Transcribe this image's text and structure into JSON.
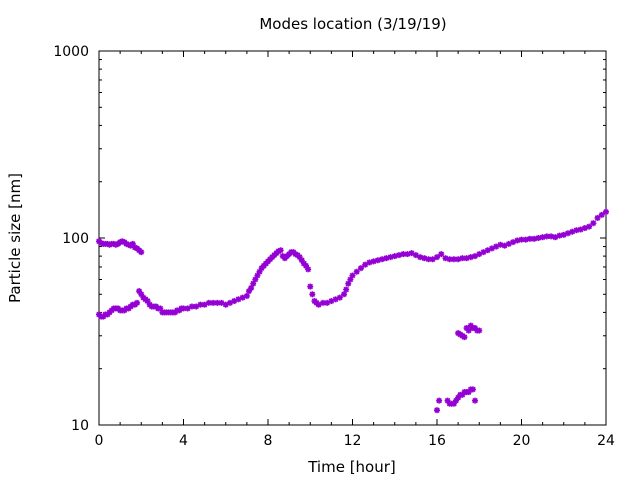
{
  "chart_data": {
    "type": "scatter",
    "title": "Modes location (3/19/19)",
    "xlabel": "Time [hour]",
    "ylabel": "Particle size [nm]",
    "xlim": [
      0,
      24
    ],
    "ylim": [
      10,
      1000
    ],
    "yscale": "log",
    "grid": false,
    "legend": "none",
    "marker_color": "#9400d3",
    "xticks": [
      "0",
      "4",
      "8",
      "12",
      "16",
      "20",
      "24"
    ],
    "yticks": [
      "10",
      "100",
      "1000"
    ],
    "series": [
      {
        "points": [
          [
            0.0,
            96
          ],
          [
            0.1,
            94
          ],
          [
            0.2,
            93
          ],
          [
            0.3,
            93
          ],
          [
            0.4,
            93
          ],
          [
            0.5,
            92
          ],
          [
            0.6,
            93
          ],
          [
            0.7,
            93
          ],
          [
            0.8,
            92
          ],
          [
            0.9,
            93
          ],
          [
            1.0,
            95
          ],
          [
            1.1,
            96
          ],
          [
            1.2,
            95
          ],
          [
            1.3,
            93
          ],
          [
            1.4,
            92
          ],
          [
            1.5,
            91
          ],
          [
            1.6,
            93
          ],
          [
            1.7,
            89
          ],
          [
            1.8,
            88
          ],
          [
            1.9,
            86
          ],
          [
            2.0,
            84
          ]
        ]
      },
      {
        "points": [
          [
            0.0,
            39
          ],
          [
            0.1,
            38
          ],
          [
            0.2,
            38
          ],
          [
            0.3,
            39
          ],
          [
            0.4,
            39
          ],
          [
            0.5,
            40
          ],
          [
            0.6,
            41
          ],
          [
            0.7,
            42
          ],
          [
            0.8,
            42
          ],
          [
            0.9,
            42
          ],
          [
            1.0,
            41
          ],
          [
            1.1,
            41
          ],
          [
            1.2,
            41
          ],
          [
            1.3,
            42
          ],
          [
            1.4,
            42
          ],
          [
            1.5,
            43
          ],
          [
            1.6,
            44
          ],
          [
            1.7,
            44
          ],
          [
            1.8,
            45
          ],
          [
            1.9,
            52
          ],
          [
            2.0,
            50
          ],
          [
            2.1,
            48
          ],
          [
            2.2,
            47
          ],
          [
            2.3,
            46
          ],
          [
            2.4,
            44
          ],
          [
            2.5,
            43
          ],
          [
            2.6,
            43
          ],
          [
            2.7,
            43
          ],
          [
            2.8,
            42
          ],
          [
            2.9,
            42
          ],
          [
            3.0,
            40
          ],
          [
            3.1,
            40
          ],
          [
            3.2,
            40
          ],
          [
            3.3,
            40
          ],
          [
            3.4,
            40
          ],
          [
            3.5,
            40
          ],
          [
            3.6,
            40
          ],
          [
            3.7,
            41
          ],
          [
            3.8,
            41
          ],
          [
            3.9,
            42
          ],
          [
            4.0,
            42
          ],
          [
            4.2,
            42
          ],
          [
            4.4,
            43
          ],
          [
            4.6,
            43
          ],
          [
            4.8,
            44
          ],
          [
            5.0,
            44
          ],
          [
            5.2,
            45
          ],
          [
            5.4,
            45
          ],
          [
            5.6,
            45
          ],
          [
            5.8,
            45
          ],
          [
            6.0,
            44
          ],
          [
            6.2,
            45
          ],
          [
            6.4,
            46
          ],
          [
            6.6,
            47
          ],
          [
            6.8,
            48
          ],
          [
            7.0,
            49
          ],
          [
            7.1,
            52
          ],
          [
            7.2,
            54
          ],
          [
            7.3,
            57
          ],
          [
            7.4,
            60
          ],
          [
            7.5,
            63
          ],
          [
            7.6,
            66
          ],
          [
            7.7,
            69
          ],
          [
            7.8,
            71
          ],
          [
            7.9,
            73
          ],
          [
            8.0,
            75
          ],
          [
            8.1,
            77
          ],
          [
            8.2,
            79
          ],
          [
            8.3,
            81
          ],
          [
            8.4,
            83
          ],
          [
            8.5,
            85
          ],
          [
            8.6,
            86
          ],
          [
            8.7,
            80
          ],
          [
            8.8,
            78
          ],
          [
            8.9,
            80
          ],
          [
            9.0,
            82
          ],
          [
            9.1,
            84
          ],
          [
            9.2,
            84
          ],
          [
            9.3,
            82
          ],
          [
            9.4,
            81
          ],
          [
            9.5,
            79
          ],
          [
            9.6,
            76
          ],
          [
            9.7,
            73
          ],
          [
            9.8,
            71
          ],
          [
            9.9,
            68
          ],
          [
            10.0,
            55
          ],
          [
            10.1,
            50
          ],
          [
            10.2,
            46
          ],
          [
            10.3,
            45
          ],
          [
            10.4,
            44
          ],
          [
            10.6,
            45
          ],
          [
            10.8,
            45
          ],
          [
            11.0,
            46
          ],
          [
            11.2,
            47
          ],
          [
            11.4,
            48
          ],
          [
            11.6,
            50
          ],
          [
            11.7,
            53
          ],
          [
            11.8,
            57
          ],
          [
            11.9,
            60
          ],
          [
            12.0,
            63
          ],
          [
            12.2,
            66
          ],
          [
            12.4,
            69
          ],
          [
            12.6,
            72
          ],
          [
            12.8,
            74
          ],
          [
            13.0,
            75
          ],
          [
            13.2,
            76
          ],
          [
            13.4,
            77
          ],
          [
            13.6,
            78
          ],
          [
            13.8,
            79
          ],
          [
            14.0,
            80
          ],
          [
            14.2,
            81
          ],
          [
            14.4,
            82
          ],
          [
            14.6,
            82
          ],
          [
            14.8,
            83
          ],
          [
            15.0,
            81
          ],
          [
            15.2,
            79
          ],
          [
            15.4,
            78
          ],
          [
            15.6,
            77
          ],
          [
            15.8,
            77
          ],
          [
            16.0,
            79
          ],
          [
            16.2,
            82
          ],
          [
            16.4,
            78
          ],
          [
            16.6,
            77
          ],
          [
            16.8,
            77
          ],
          [
            17.0,
            77
          ],
          [
            17.2,
            78
          ],
          [
            17.4,
            78
          ],
          [
            17.6,
            79
          ],
          [
            17.8,
            80
          ],
          [
            18.0,
            82
          ],
          [
            18.2,
            84
          ],
          [
            18.4,
            86
          ],
          [
            18.6,
            88
          ],
          [
            18.8,
            90
          ],
          [
            19.0,
            92
          ],
          [
            19.2,
            91
          ],
          [
            19.4,
            93
          ],
          [
            19.6,
            95
          ],
          [
            19.8,
            97
          ],
          [
            20.0,
            98
          ],
          [
            20.2,
            98
          ],
          [
            20.4,
            99
          ],
          [
            20.6,
            99
          ],
          [
            20.8,
            100
          ],
          [
            21.0,
            101
          ],
          [
            21.2,
            102
          ],
          [
            21.4,
            102
          ],
          [
            21.6,
            101
          ],
          [
            21.8,
            103
          ],
          [
            22.0,
            104
          ],
          [
            22.2,
            106
          ],
          [
            22.4,
            108
          ],
          [
            22.6,
            110
          ],
          [
            22.8,
            111
          ],
          [
            23.0,
            113
          ],
          [
            23.2,
            115
          ],
          [
            23.4,
            120
          ],
          [
            23.6,
            128
          ],
          [
            23.8,
            133
          ],
          [
            24.0,
            138
          ]
        ]
      },
      {
        "points": [
          [
            17.0,
            31
          ],
          [
            17.1,
            30.5
          ],
          [
            17.2,
            30
          ],
          [
            17.3,
            29.5
          ],
          [
            17.4,
            33
          ],
          [
            17.5,
            32
          ],
          [
            17.6,
            34
          ],
          [
            17.7,
            33
          ],
          [
            17.8,
            33
          ],
          [
            17.9,
            32
          ],
          [
            18.0,
            32
          ]
        ]
      },
      {
        "points": [
          [
            16.0,
            12
          ],
          [
            16.1,
            13.5
          ],
          [
            16.5,
            13.5
          ],
          [
            16.6,
            13
          ],
          [
            16.7,
            13
          ],
          [
            16.8,
            13
          ],
          [
            16.9,
            13.5
          ],
          [
            17.0,
            14
          ],
          [
            17.1,
            14.5
          ],
          [
            17.2,
            14.5
          ],
          [
            17.3,
            15
          ],
          [
            17.4,
            15
          ],
          [
            17.5,
            15
          ],
          [
            17.6,
            15.5
          ],
          [
            17.7,
            15.5
          ],
          [
            17.8,
            13.5
          ]
        ]
      }
    ]
  }
}
